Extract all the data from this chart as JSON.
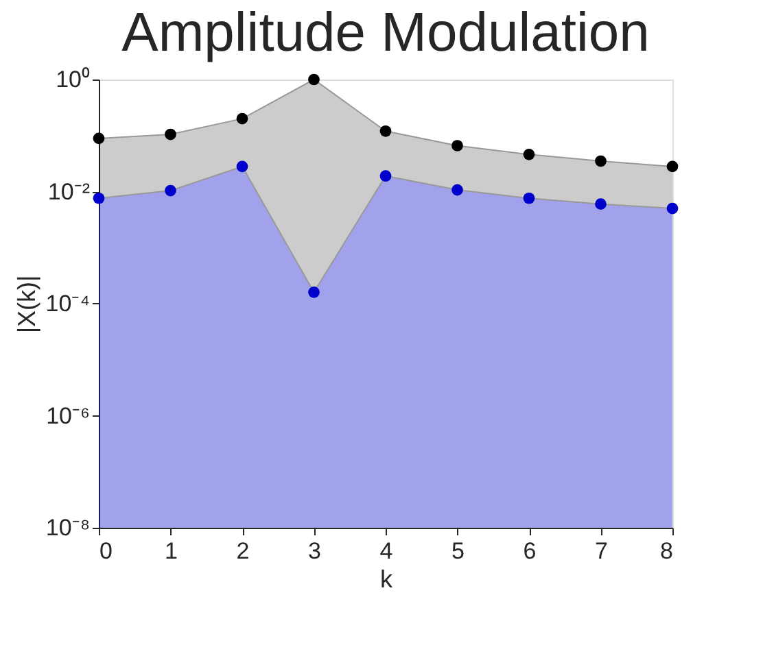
{
  "chart_data": {
    "type": "area",
    "title": "Amplitude Modulation",
    "xlabel": "k",
    "ylabel": "|X(k)|",
    "x": [
      0,
      1,
      2,
      3,
      4,
      5,
      6,
      7,
      8
    ],
    "series": [
      {
        "color": "#000000",
        "values": [
          0.089,
          0.105,
          0.2,
          1,
          0.12,
          0.066,
          0.046,
          0.035,
          0.028
        ]
      },
      {
        "color": "#0000cc",
        "values": [
          0.0076,
          0.0104,
          0.028,
          0.00016,
          0.019,
          0.0107,
          0.0076,
          0.006,
          0.005
        ]
      }
    ],
    "log": "y",
    "marker": "circle",
    "grid": false,
    "xlim": [
      0,
      8
    ],
    "xticks": [
      0,
      1,
      2,
      3,
      4,
      5,
      6,
      7,
      8
    ],
    "ylim": [
      1e-08,
      1
    ],
    "yticks": [
      {
        "value": 1e-08,
        "label": "10⁻⁸"
      },
      {
        "value": 1e-06,
        "label": "10⁻⁶"
      },
      {
        "value": 0.0001,
        "label": "10⁻⁴"
      },
      {
        "value": 0.01,
        "label": "10⁻²"
      },
      {
        "value": 1,
        "label": "10⁰"
      }
    ]
  }
}
